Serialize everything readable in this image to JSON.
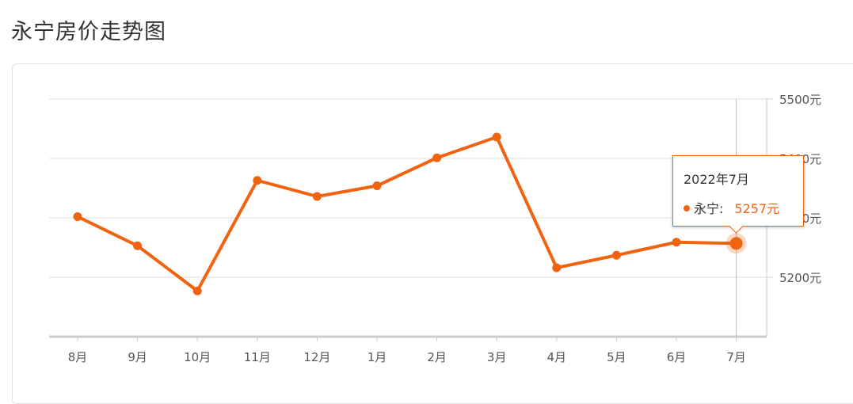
{
  "page": {
    "title": "永宁房价走势图"
  },
  "colors": {
    "accent": "#f06311",
    "grid": "#dddddd",
    "axis": "#cccccc",
    "text": "#555555"
  },
  "tooltip": {
    "date": "2022年7月",
    "series_label": "永宁:",
    "value_text": "5257元"
  },
  "chart_data": {
    "type": "line",
    "title": "永宁房价走势图",
    "categories": [
      "8月",
      "9月",
      "10月",
      "11月",
      "12月",
      "1月",
      "2月",
      "3月",
      "4月",
      "5月",
      "6月",
      "7月"
    ],
    "series": [
      {
        "name": "永宁",
        "values": [
          5302,
          5253,
          5177,
          5363,
          5336,
          5354,
          5401,
          5436,
          5216,
          5237,
          5259,
          5257
        ]
      }
    ],
    "y_ticks": [
      "5200元",
      "5300元",
      "5400元",
      "5500元"
    ],
    "y_tick_values": [
      5200,
      5300,
      5400,
      5500
    ],
    "ylim": [
      5100,
      5500
    ],
    "y_axis_position": "right",
    "grid": true,
    "highlighted_index": 11
  }
}
